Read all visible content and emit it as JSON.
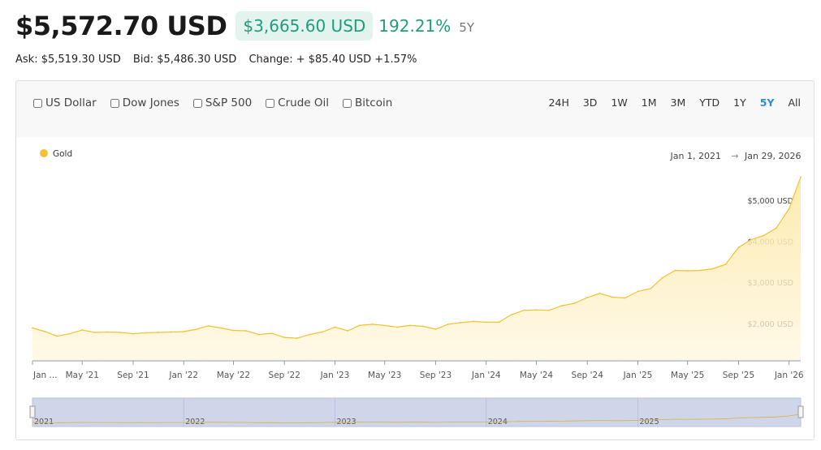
{
  "header": {
    "price": "$5,572.70 USD",
    "change_abs": "$3,665.60 USD",
    "change_pct": "192.21%",
    "period": "5Y"
  },
  "quote": {
    "ask": "Ask: $5,519.30 USD",
    "bid": "Bid: $5,486.30 USD",
    "change": "Change: + $85.40 USD +1.57%"
  },
  "compare": [
    "US Dollar",
    "Dow Jones",
    "S&P 500",
    "Crude Oil",
    "Bitcoin"
  ],
  "ranges": [
    "24H",
    "3D",
    "1W",
    "1M",
    "3M",
    "YTD",
    "1Y",
    "5Y",
    "All"
  ],
  "active_range": "5Y",
  "date_range": {
    "from": "Jan 1, 2021",
    "arrow": "→",
    "to": "Jan 29, 2026"
  },
  "colors": {
    "gold_line": "#f2c232",
    "gold_fill_top": "#fde9a8",
    "accent_green": "#1f9c7a",
    "accent_blue": "#2a8fc6",
    "navigator_fill": "#cfd6ea"
  },
  "chart_data": {
    "type": "area",
    "series": [
      {
        "name": "Gold",
        "points": [
          [
            "2021-01-01",
            1900
          ],
          [
            "2021-02-01",
            1810
          ],
          [
            "2021-03-01",
            1700
          ],
          [
            "2021-04-01",
            1760
          ],
          [
            "2021-05-01",
            1850
          ],
          [
            "2021-06-01",
            1790
          ],
          [
            "2021-07-01",
            1800
          ],
          [
            "2021-08-01",
            1790
          ],
          [
            "2021-09-01",
            1760
          ],
          [
            "2021-10-01",
            1780
          ],
          [
            "2021-11-01",
            1790
          ],
          [
            "2021-12-01",
            1800
          ],
          [
            "2022-01-01",
            1810
          ],
          [
            "2022-02-01",
            1870
          ],
          [
            "2022-03-01",
            1950
          ],
          [
            "2022-04-01",
            1900
          ],
          [
            "2022-05-01",
            1840
          ],
          [
            "2022-06-01",
            1830
          ],
          [
            "2022-07-01",
            1740
          ],
          [
            "2022-08-01",
            1770
          ],
          [
            "2022-09-01",
            1670
          ],
          [
            "2022-10-01",
            1650
          ],
          [
            "2022-11-01",
            1740
          ],
          [
            "2022-12-01",
            1800
          ],
          [
            "2023-01-01",
            1920
          ],
          [
            "2023-02-01",
            1830
          ],
          [
            "2023-03-01",
            1960
          ],
          [
            "2023-04-01",
            1990
          ],
          [
            "2023-05-01",
            1960
          ],
          [
            "2023-06-01",
            1920
          ],
          [
            "2023-07-01",
            1960
          ],
          [
            "2023-08-01",
            1940
          ],
          [
            "2023-09-01",
            1870
          ],
          [
            "2023-10-01",
            1990
          ],
          [
            "2023-11-01",
            2030
          ],
          [
            "2023-12-01",
            2060
          ],
          [
            "2024-01-01",
            2040
          ],
          [
            "2024-02-01",
            2040
          ],
          [
            "2024-03-01",
            2220
          ],
          [
            "2024-04-01",
            2330
          ],
          [
            "2024-05-01",
            2340
          ],
          [
            "2024-06-01",
            2330
          ],
          [
            "2024-07-01",
            2440
          ],
          [
            "2024-08-01",
            2500
          ],
          [
            "2024-09-01",
            2640
          ],
          [
            "2024-10-01",
            2740
          ],
          [
            "2024-11-01",
            2650
          ],
          [
            "2024-12-01",
            2630
          ],
          [
            "2025-01-01",
            2790
          ],
          [
            "2025-02-01",
            2860
          ],
          [
            "2025-03-01",
            3120
          ],
          [
            "2025-04-01",
            3300
          ],
          [
            "2025-05-01",
            3290
          ],
          [
            "2025-06-01",
            3300
          ],
          [
            "2025-07-01",
            3340
          ],
          [
            "2025-08-01",
            3450
          ],
          [
            "2025-09-01",
            3860
          ],
          [
            "2025-10-01",
            4050
          ],
          [
            "2025-11-01",
            4150
          ],
          [
            "2025-12-01",
            4330
          ],
          [
            "2026-01-01",
            4800
          ],
          [
            "2026-01-29",
            5572.7
          ]
        ]
      }
    ],
    "y_ticks": [
      "$2,000 USD",
      "$3,000 USD",
      "$4,000 USD",
      "$5,000 USD"
    ],
    "ylim": [
      1100,
      5600
    ],
    "xlim": [
      "2021-01-01",
      "2026-01-29"
    ],
    "x_ticks": [
      {
        "label": "Jan ...",
        "date": "2021-01-01"
      },
      {
        "label": "May '21",
        "date": "2021-05-01"
      },
      {
        "label": "Sep '21",
        "date": "2021-09-01"
      },
      {
        "label": "Jan '22",
        "date": "2022-01-01"
      },
      {
        "label": "May '22",
        "date": "2022-05-01"
      },
      {
        "label": "Sep '22",
        "date": "2022-09-01"
      },
      {
        "label": "Jan '23",
        "date": "2023-01-01"
      },
      {
        "label": "May '23",
        "date": "2023-05-01"
      },
      {
        "label": "Sep '23",
        "date": "2023-09-01"
      },
      {
        "label": "Jan '24",
        "date": "2024-01-01"
      },
      {
        "label": "May '24",
        "date": "2024-05-01"
      },
      {
        "label": "Sep '24",
        "date": "2024-09-01"
      },
      {
        "label": "Jan '25",
        "date": "2025-01-01"
      },
      {
        "label": "May '25",
        "date": "2025-05-01"
      },
      {
        "label": "Sep '25",
        "date": "2025-09-01"
      },
      {
        "label": "Jan '26",
        "date": "2026-01-01"
      }
    ],
    "navigator_years": [
      "2021",
      "2022",
      "2023",
      "2024",
      "2025"
    ],
    "legend_position": "top-left",
    "grid": false
  }
}
